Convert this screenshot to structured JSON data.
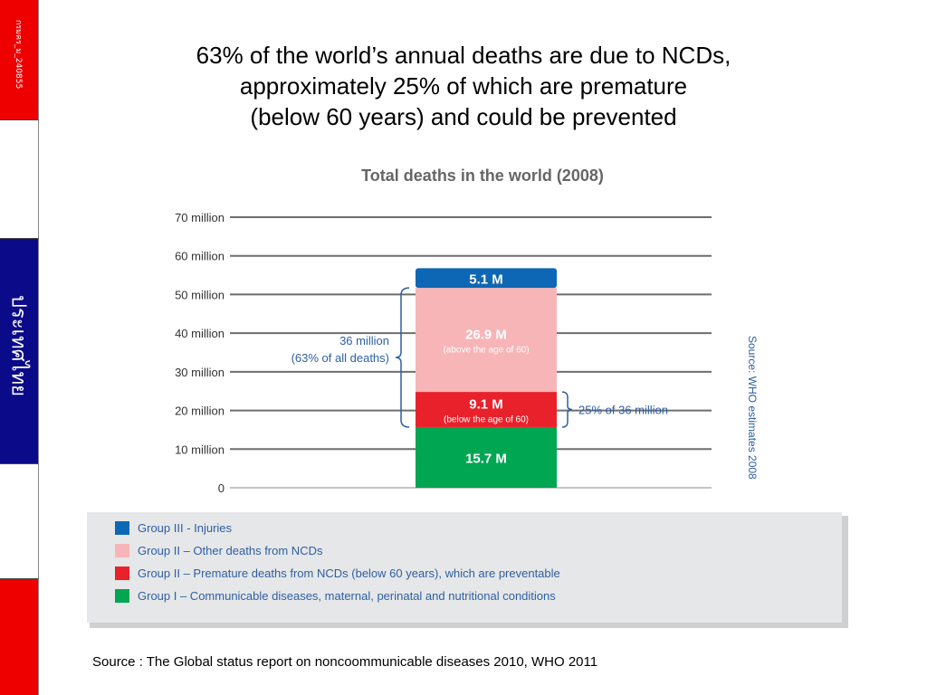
{
  "side": {
    "slide_code": "กรมคร_ม_240855",
    "country": "ประเทศไทย",
    "flag_colors": {
      "red": "#ee0000",
      "white": "#ffffff",
      "blue": "#0b0b8a"
    }
  },
  "title_lines": [
    "63% of the world’s annual deaths are due to NCDs,",
    "approximately 25% of which are premature",
    "(below 60 years) and could be prevented"
  ],
  "chart_data": {
    "type": "bar",
    "stacked": true,
    "title": "Total deaths in the world (2008)",
    "unit": "million",
    "ylim": [
      0,
      70
    ],
    "y_ticks": [
      0,
      10,
      20,
      30,
      40,
      50,
      60,
      70
    ],
    "y_tick_labels": [
      "0",
      "10 million",
      "20 million",
      "30 million",
      "40 million",
      "50 million",
      "60 million",
      "70 million"
    ],
    "grid": true,
    "series": [
      {
        "name": "Group I – Communicable diseases, maternal, perinatal and nutritional conditions",
        "value": 15.7,
        "label": "15.7 M",
        "sublabel": "",
        "color": "#00a651",
        "text_color": "#ffffff"
      },
      {
        "name": "Group II – Premature deaths from NCDs (below 60 years), which are preventable",
        "value": 9.1,
        "label": "9.1 M",
        "sublabel": "(below the age of 60)",
        "color": "#e8212b",
        "text_color": "#ffffff"
      },
      {
        "name": "Group II – Other deaths from NCDs",
        "value": 26.9,
        "label": "26.9 M",
        "sublabel": "(above the age of 60)",
        "color": "#f7b5b8",
        "text_color": "#ffffff"
      },
      {
        "name": "Group III - Injuries",
        "value": 5.1,
        "label": "5.1 M",
        "sublabel": "",
        "color": "#0e67b4",
        "text_color": "#ffffff"
      }
    ],
    "legend_order": [
      3,
      2,
      1,
      0
    ],
    "legend_position": "bottom",
    "annotations": {
      "ncd_bracket": {
        "line1": "36 million",
        "line2": "(63% of all deaths)",
        "from": 15.7,
        "to": 51.7
      },
      "premature_bracket": {
        "text": "25% of 36 million",
        "from": 15.7,
        "to": 24.8
      }
    },
    "side_source": "Source: WHO estimates 2008",
    "accent_color": "#2e5fa3",
    "axis_text_color": "#333333",
    "legend_bg": "#e6e7e8"
  },
  "source_note": "Source : The Global status report on noncoommunicable diseases 2010, WHO 2011"
}
